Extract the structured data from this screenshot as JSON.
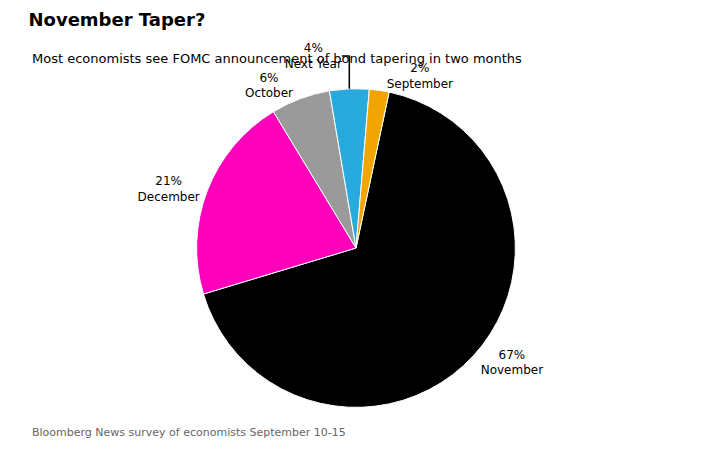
{
  "chart_data": {
    "type": "pie",
    "title": "November Taper?",
    "subtitle": "Most economists see FOMC announcement of bond tapering in two months",
    "footnote": "Bloomberg News survey of economists September 10-15",
    "categories": [
      "November",
      "December",
      "October",
      "Next Year",
      "September"
    ],
    "values": [
      67,
      21,
      6,
      4,
      2
    ],
    "value_labels": [
      "67%",
      "21%",
      "6%",
      "4%",
      "2%"
    ],
    "colors": [
      "#000000",
      "#FF00BB",
      "#9A9A9A",
      "#29AADE",
      "#F0A500"
    ]
  }
}
